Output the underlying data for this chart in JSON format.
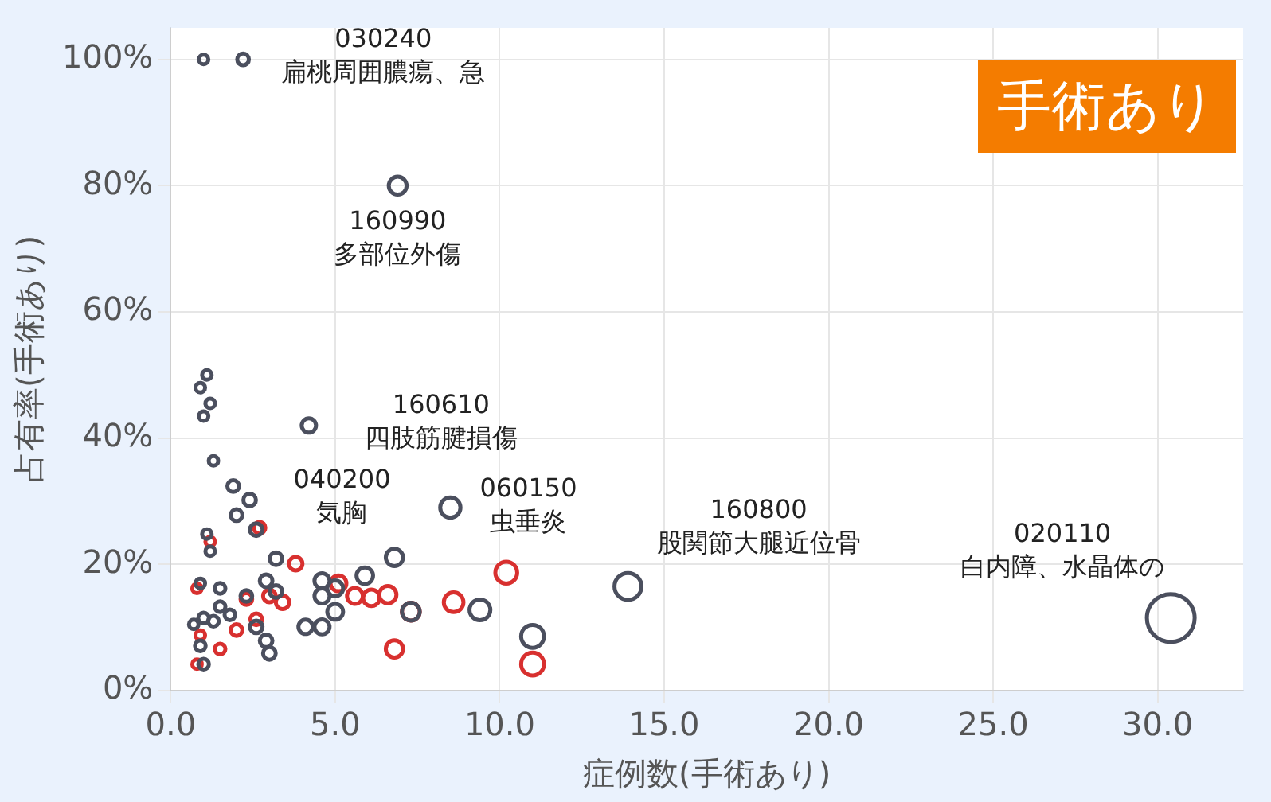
{
  "chart_data": {
    "type": "bubble",
    "title": "手術あり",
    "xlabel": "症例数(手術あり)",
    "ylabel": "占有率(手術あり)",
    "xlim": [
      0,
      32.6
    ],
    "xticks": [
      {
        "value": 0,
        "label": "0.0"
      },
      {
        "value": 5,
        "label": "5.0"
      },
      {
        "value": 10,
        "label": "10.0"
      },
      {
        "value": 15,
        "label": "15.0"
      },
      {
        "value": 20,
        "label": "20.0"
      },
      {
        "value": 25,
        "label": "25.0"
      },
      {
        "value": 30,
        "label": "30.0"
      }
    ],
    "ylim": [
      0,
      105
    ],
    "yticks": [
      {
        "value": 0,
        "label": "0%"
      },
      {
        "value": 20,
        "label": "20%"
      },
      {
        "value": 40,
        "label": "40%"
      },
      {
        "value": 60,
        "label": "60%"
      },
      {
        "value": 80,
        "label": "80%"
      },
      {
        "value": 100,
        "label": "100%"
      }
    ],
    "grid": true,
    "series": [
      {
        "color": "#4b4f5e",
        "x": [
          1.0,
          2.2,
          6.9,
          4.2,
          2.4,
          8.5,
          13.9,
          30.4,
          1.1,
          0.9,
          1.2,
          1.0,
          1.3,
          1.9,
          2.0,
          2.6,
          1.1,
          1.2,
          3.2,
          6.8,
          5.9,
          4.6,
          5.0,
          2.9,
          3.2,
          1.5,
          0.9,
          4.6,
          5.0,
          7.3,
          9.4,
          11.0,
          4.1,
          4.6,
          2.3,
          1.8,
          1.0,
          1.5,
          2.6,
          2.9,
          3.0,
          0.9,
          1.0,
          0.7,
          1.3
        ],
        "values": [
          100,
          100,
          80,
          42,
          30.2,
          29,
          16.5,
          11.5,
          50,
          48,
          45.5,
          43.5,
          36.4,
          32.4,
          27.8,
          25.5,
          24.8,
          22.1,
          20.9,
          21.1,
          18.2,
          17.4,
          16.2,
          17.4,
          15.7,
          16.2,
          17,
          15,
          12.5,
          12.5,
          12.8,
          8.6,
          10.1,
          10.1,
          15,
          12,
          11.5,
          13.3,
          10.1,
          7.9,
          5.9,
          7.1,
          4.2,
          10.5,
          11
        ],
        "sizes": [
          0.04,
          0.06,
          0.14,
          0.09,
          0.07,
          0.18,
          0.32,
          1,
          0.04,
          0.04,
          0.04,
          0.04,
          0.04,
          0.06,
          0.06,
          0.07,
          0.04,
          0.04,
          0.07,
          0.13,
          0.12,
          0.1,
          0.11,
          0.07,
          0.07,
          0.05,
          0.04,
          0.1,
          0.11,
          0.14,
          0.19,
          0.23,
          0.09,
          0.1,
          0.06,
          0.05,
          0.05,
          0.05,
          0.07,
          0.07,
          0.07,
          0.05,
          0.05,
          0.04,
          0.05
        ]
      },
      {
        "color": "#d8302f",
        "x": [
          2.7,
          1.2,
          3.8,
          10.2,
          5.1,
          5.6,
          6.1,
          6.6,
          8.6,
          3.4,
          3.0,
          2.3,
          2.0,
          2.6,
          0.8,
          0.9,
          0.8,
          1.5,
          6.8,
          11.0,
          7.3
        ],
        "values": [
          25.8,
          23.6,
          20.1,
          18.7,
          17,
          15,
          14.7,
          15.2,
          14,
          14,
          15,
          14.5,
          9.6,
          11.3,
          16.2,
          8.8,
          4.2,
          6.6,
          6.6,
          4.2,
          12.5
        ],
        "sizes": [
          0.06,
          0.04,
          0.08,
          0.21,
          0.11,
          0.11,
          0.12,
          0.13,
          0.17,
          0.08,
          0.07,
          0.06,
          0.06,
          0.06,
          0.04,
          0.04,
          0.04,
          0.05,
          0.13,
          0.23,
          0.14
        ]
      }
    ],
    "annotations": [
      {
        "text": "030240\n扁桃周囲膿瘍、急",
        "x": 2.2,
        "y": 100
      },
      {
        "text": "160990\n多部位外傷",
        "x": 6.9,
        "y": 80
      },
      {
        "text": "160610\n四肢筋腱損傷",
        "x": 4.2,
        "y": 42
      },
      {
        "text": "040200\n気胸",
        "x": 2.4,
        "y": 30.2
      },
      {
        "text": "060150\n虫垂炎",
        "x": 8.5,
        "y": 29
      },
      {
        "text": "160800\n股関節大腿近位骨",
        "x": 13.9,
        "y": 16.5
      },
      {
        "text": "020110\n白内障、水晶体の",
        "x": 30.4,
        "y": 11.5
      }
    ]
  }
}
